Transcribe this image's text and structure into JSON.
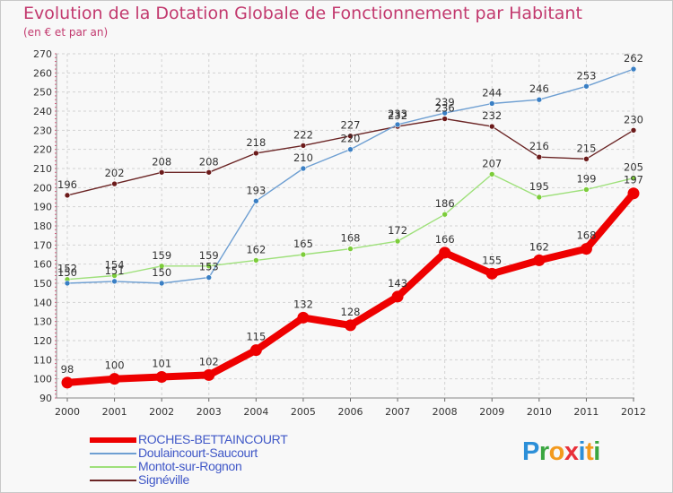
{
  "title": "Evolution de la Dotation Globale de Fonctionnement par Habitant",
  "subtitle": "(en € et par an)",
  "logo": "Proxiti",
  "chart_data": {
    "type": "line",
    "title": "Evolution de la Dotation Globale de Fonctionnement par Habitant",
    "ylabel": "(en € et par an)",
    "xlabel": "",
    "x": [
      "2000",
      "2001",
      "2002",
      "2003",
      "2004",
      "2005",
      "2006",
      "2007",
      "2008",
      "2009",
      "2010",
      "2011",
      "2012"
    ],
    "ylim": [
      90,
      270
    ],
    "yticks": [
      90,
      100,
      110,
      120,
      130,
      140,
      150,
      160,
      170,
      180,
      190,
      200,
      210,
      220,
      230,
      240,
      250,
      260,
      270
    ],
    "grid": true,
    "legend": "bottom-left",
    "series": [
      {
        "name": "ROCHES-BETTAINCOURT",
        "color": "#ee0000",
        "values": [
          98,
          100,
          101,
          102,
          115,
          132,
          128,
          143,
          166,
          155,
          162,
          168,
          197
        ]
      },
      {
        "name": "Doulaincourt-Saucourt",
        "color": "#6e9fd2",
        "values": [
          150,
          151,
          150,
          153,
          193,
          210,
          220,
          233,
          239,
          244,
          246,
          253,
          262
        ]
      },
      {
        "name": "Montot-sur-Rognon",
        "color": "#9ee07a",
        "values": [
          152,
          154,
          159,
          159,
          162,
          165,
          168,
          172,
          186,
          207,
          195,
          199,
          205
        ]
      },
      {
        "name": "Signéville",
        "color": "#6b2525",
        "values": [
          196,
          202,
          208,
          208,
          218,
          222,
          227,
          232,
          236,
          232,
          216,
          215,
          230
        ]
      }
    ]
  }
}
